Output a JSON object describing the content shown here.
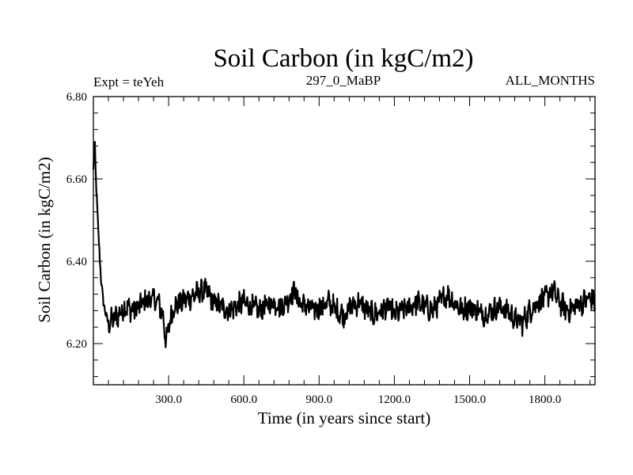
{
  "chart_data": {
    "type": "line",
    "title": "Soil Carbon (in kgC/m2)",
    "subtitle_left": "Expt = teYeh",
    "subtitle_center": "297_0_MaBP",
    "subtitle_right": "ALL_MONTHS",
    "xlabel": "Time (in years since start)",
    "ylabel": "Soil Carbon (in kgC/m2)",
    "xlim": [
      0,
      2000
    ],
    "ylim": [
      6.1,
      6.8
    ],
    "xticks": [
      300,
      600,
      900,
      1200,
      1500,
      1800
    ],
    "xtick_labels": [
      "300.0",
      "600.0",
      "900.0",
      "1200.0",
      "1500.0",
      "1800.0"
    ],
    "yticks": [
      6.2,
      6.4,
      6.6,
      6.8
    ],
    "ytick_labels": [
      "6.20",
      "6.40",
      "6.60",
      "6.80"
    ],
    "grid": false,
    "series": [
      {
        "name": "soil carbon",
        "x": [
          0,
          5,
          10,
          20,
          30,
          40,
          50,
          60,
          80,
          100,
          130,
          160,
          200,
          230,
          260,
          280,
          290,
          300,
          320,
          350,
          380,
          410,
          440,
          460,
          480,
          510,
          540,
          570,
          600,
          630,
          660,
          690,
          720,
          750,
          780,
          800,
          820,
          850,
          880,
          910,
          940,
          970,
          1000,
          1030,
          1060,
          1090,
          1120,
          1150,
          1180,
          1200,
          1230,
          1260,
          1290,
          1320,
          1350,
          1380,
          1410,
          1440,
          1470,
          1500,
          1530,
          1560,
          1590,
          1620,
          1650,
          1680,
          1710,
          1740,
          1770,
          1800,
          1830,
          1860,
          1890,
          1920,
          1950,
          1980,
          2000
        ],
        "y": [
          6.62,
          6.7,
          6.6,
          6.47,
          6.36,
          6.3,
          6.27,
          6.25,
          6.26,
          6.27,
          6.29,
          6.28,
          6.3,
          6.31,
          6.3,
          6.26,
          6.2,
          6.24,
          6.29,
          6.3,
          6.31,
          6.32,
          6.33,
          6.32,
          6.3,
          6.29,
          6.28,
          6.29,
          6.3,
          6.29,
          6.28,
          6.29,
          6.3,
          6.29,
          6.31,
          6.33,
          6.3,
          6.29,
          6.28,
          6.29,
          6.3,
          6.28,
          6.27,
          6.29,
          6.3,
          6.28,
          6.27,
          6.28,
          6.29,
          6.27,
          6.28,
          6.29,
          6.3,
          6.29,
          6.28,
          6.3,
          6.32,
          6.3,
          6.28,
          6.29,
          6.28,
          6.27,
          6.28,
          6.29,
          6.28,
          6.26,
          6.25,
          6.28,
          6.3,
          6.31,
          6.33,
          6.3,
          6.28,
          6.29,
          6.3,
          6.31,
          6.3
        ]
      }
    ]
  }
}
